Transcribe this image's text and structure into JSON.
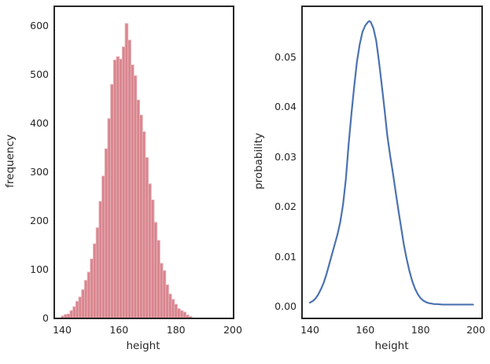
{
  "figure": {
    "background": "#ffffff",
    "spine_color": "#262626",
    "text_color": "#262626"
  },
  "chart_data": [
    {
      "type": "bar",
      "subtype": "histogram",
      "panel": "left",
      "xlabel": "height",
      "ylabel": "frequency",
      "bar_color": "#d9858e",
      "bar_edge_color": "#e7b1b7",
      "bin_start": 139.7,
      "bin_width": 1.02,
      "values": [
        5,
        8,
        9,
        16,
        24,
        35,
        44,
        59,
        78,
        95,
        122,
        153,
        186,
        240,
        292,
        348,
        410,
        480,
        530,
        537,
        532,
        557,
        605,
        571,
        520,
        498,
        448,
        417,
        383,
        330,
        276,
        243,
        197,
        160,
        113,
        98,
        69,
        50,
        39,
        29,
        20,
        16,
        13,
        7,
        4
      ],
      "xticks": [
        140,
        160,
        180,
        200
      ],
      "xtick_labels": [
        "140",
        "160",
        "180",
        "200"
      ],
      "yticks": [
        0,
        100,
        200,
        300,
        400,
        500,
        600
      ],
      "ytick_labels": [
        "0",
        "100",
        "200",
        "300",
        "400",
        "500",
        "600"
      ],
      "xlim": [
        137.2,
        200.8
      ],
      "ylim": [
        0,
        642
      ],
      "grid": false,
      "legend": null
    },
    {
      "type": "line",
      "subtype": "kde",
      "panel": "right",
      "xlabel": "height",
      "ylabel": "probability",
      "line_color": "#4c72b0",
      "x": [
        140,
        141,
        142,
        143,
        144,
        145,
        146,
        147,
        148,
        149,
        150,
        151,
        152,
        153,
        154,
        155,
        156,
        157,
        158,
        159,
        160,
        161,
        161.5,
        162,
        163,
        164,
        165,
        166,
        167,
        168,
        169,
        170,
        171,
        172,
        173,
        174,
        175,
        176,
        177,
        178,
        179,
        180,
        181,
        182,
        183,
        184,
        185,
        186,
        188,
        190,
        192,
        194,
        196,
        199
      ],
      "y": [
        0.0008,
        0.0011,
        0.0016,
        0.0024,
        0.0035,
        0.0048,
        0.0065,
        0.0085,
        0.0105,
        0.0125,
        0.0145,
        0.017,
        0.0205,
        0.0255,
        0.0325,
        0.0385,
        0.044,
        0.049,
        0.0525,
        0.055,
        0.0563,
        0.057,
        0.0572,
        0.057,
        0.0557,
        0.0532,
        0.049,
        0.0443,
        0.0394,
        0.0342,
        0.0303,
        0.0268,
        0.023,
        0.0193,
        0.0158,
        0.0123,
        0.0095,
        0.0071,
        0.0051,
        0.0036,
        0.0025,
        0.0017,
        0.0012,
        0.0009,
        0.0007,
        0.0006,
        0.0005,
        0.0005,
        0.0004,
        0.0004,
        0.0004,
        0.0004,
        0.0004,
        0.0004
      ],
      "peak": {
        "x": 161.5,
        "y": 0.0572
      },
      "xticks": [
        140,
        160,
        180,
        200
      ],
      "xtick_labels": [
        "140",
        "160",
        "180",
        "200"
      ],
      "yticks": [
        0,
        0.01,
        0.02,
        0.03,
        0.04,
        0.05
      ],
      "ytick_labels": [
        "0.00",
        "0.01",
        "0.02",
        "0.03",
        "0.04",
        "0.05"
      ],
      "xlim": [
        137.1,
        202
      ],
      "ylim": [
        -0.0024,
        0.0601
      ],
      "grid": false,
      "legend": null
    }
  ]
}
